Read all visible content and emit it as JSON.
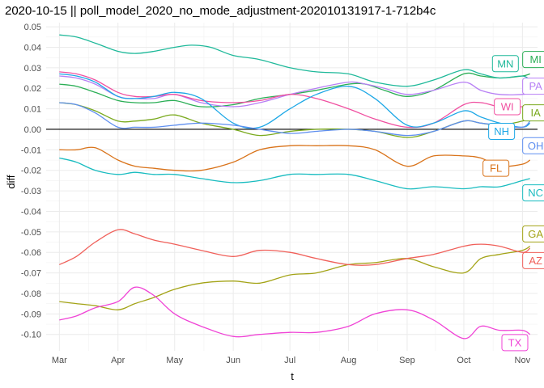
{
  "chart_data": {
    "type": "line",
    "title": "2020-10-15 || poll_model_2020_no_mode_adjustment-202010131917-1-712b4c",
    "xlabel": "t",
    "ylabel": "diff",
    "xlim": [
      "2020-02-23",
      "2020-11-09"
    ],
    "ylim": [
      -0.108,
      0.052
    ],
    "grid": true,
    "legend": "direct labels at line ends",
    "hline": 0.0,
    "x_ticks": [
      {
        "date": "2020-03-01",
        "label": "Mar"
      },
      {
        "date": "2020-04-01",
        "label": "Apr"
      },
      {
        "date": "2020-05-01",
        "label": "May"
      },
      {
        "date": "2020-06-01",
        "label": "Jun"
      },
      {
        "date": "2020-07-01",
        "label": "Jul"
      },
      {
        "date": "2020-08-01",
        "label": "Aug"
      },
      {
        "date": "2020-09-01",
        "label": "Sep"
      },
      {
        "date": "2020-10-01",
        "label": "Oct"
      },
      {
        "date": "2020-11-01",
        "label": "Nov"
      }
    ],
    "y_ticks": [
      {
        "value": 0.05,
        "label": "0.05"
      },
      {
        "value": 0.04,
        "label": "0.04"
      },
      {
        "value": 0.03,
        "label": "0.03"
      },
      {
        "value": 0.02,
        "label": "0.02"
      },
      {
        "value": 0.01,
        "label": "0.01"
      },
      {
        "value": 0.0,
        "label": "0.00"
      },
      {
        "value": -0.01,
        "label": "-0.01"
      },
      {
        "value": -0.02,
        "label": "-0.02"
      },
      {
        "value": -0.03,
        "label": "-0.03"
      },
      {
        "value": -0.04,
        "label": "-0.04"
      },
      {
        "value": -0.05,
        "label": "-0.05"
      },
      {
        "value": -0.06,
        "label": "-0.06"
      },
      {
        "value": -0.07,
        "label": "-0.07"
      },
      {
        "value": -0.08,
        "label": "-0.08"
      },
      {
        "value": -0.09,
        "label": "-0.09"
      },
      {
        "value": -0.1,
        "label": "-0.10"
      }
    ],
    "series": [
      {
        "name": "MI",
        "color": "#2aae55",
        "label": {
          "date": "2020-11-08",
          "value": 0.034
        },
        "x": [
          "2020-03-01",
          "2020-03-10",
          "2020-03-20",
          "2020-04-01",
          "2020-04-10",
          "2020-04-20",
          "2020-05-01",
          "2020-05-15",
          "2020-06-01",
          "2020-06-15",
          "2020-07-01",
          "2020-07-15",
          "2020-08-01",
          "2020-08-10",
          "2020-08-20",
          "2020-09-01",
          "2020-09-15",
          "2020-10-01",
          "2020-10-10",
          "2020-10-20",
          "2020-11-01",
          "2020-11-05"
        ],
        "y": [
          0.022,
          0.021,
          0.018,
          0.014,
          0.013,
          0.013,
          0.014,
          0.011,
          0.012,
          0.015,
          0.017,
          0.019,
          0.022,
          0.022,
          0.019,
          0.016,
          0.019,
          0.027,
          0.026,
          0.025,
          0.026,
          0.027
        ]
      },
      {
        "name": "MN",
        "color": "#1fb99a",
        "label": {
          "date": "2020-10-23",
          "value": 0.032
        },
        "x": [
          "2020-03-01",
          "2020-03-10",
          "2020-03-20",
          "2020-04-01",
          "2020-04-10",
          "2020-04-20",
          "2020-05-01",
          "2020-05-10",
          "2020-05-20",
          "2020-06-01",
          "2020-06-15",
          "2020-07-01",
          "2020-07-15",
          "2020-08-01",
          "2020-08-15",
          "2020-09-01",
          "2020-09-15",
          "2020-10-01",
          "2020-10-10",
          "2020-10-20",
          "2020-11-01",
          "2020-11-05"
        ],
        "y": [
          0.046,
          0.045,
          0.042,
          0.038,
          0.037,
          0.038,
          0.04,
          0.041,
          0.04,
          0.036,
          0.034,
          0.03,
          0.028,
          0.027,
          0.023,
          0.021,
          0.024,
          0.029,
          0.027,
          0.025,
          0.026,
          0.024
        ]
      },
      {
        "name": "PA",
        "color": "#b77ff5",
        "label": {
          "date": "2020-11-08",
          "value": 0.021
        },
        "x": [
          "2020-03-01",
          "2020-03-10",
          "2020-03-20",
          "2020-04-01",
          "2020-04-10",
          "2020-04-20",
          "2020-05-01",
          "2020-05-15",
          "2020-06-01",
          "2020-06-15",
          "2020-07-01",
          "2020-07-15",
          "2020-08-01",
          "2020-08-10",
          "2020-08-20",
          "2020-09-01",
          "2020-09-15",
          "2020-10-01",
          "2020-10-10",
          "2020-10-20",
          "2020-11-01",
          "2020-11-05"
        ],
        "y": [
          0.026,
          0.025,
          0.022,
          0.016,
          0.015,
          0.015,
          0.017,
          0.013,
          0.011,
          0.013,
          0.017,
          0.02,
          0.023,
          0.022,
          0.02,
          0.017,
          0.019,
          0.023,
          0.019,
          0.017,
          0.017,
          0.018
        ]
      },
      {
        "name": "WI",
        "color": "#f04fa0",
        "label": {
          "date": "2020-10-24",
          "value": 0.011
        },
        "x": [
          "2020-03-01",
          "2020-03-10",
          "2020-03-20",
          "2020-04-01",
          "2020-04-10",
          "2020-04-20",
          "2020-05-01",
          "2020-05-15",
          "2020-06-01",
          "2020-06-15",
          "2020-07-01",
          "2020-07-15",
          "2020-08-01",
          "2020-08-15",
          "2020-09-01",
          "2020-09-15",
          "2020-10-01",
          "2020-10-10",
          "2020-10-20",
          "2020-11-01",
          "2020-11-05"
        ],
        "y": [
          0.028,
          0.027,
          0.024,
          0.018,
          0.016,
          0.016,
          0.017,
          0.014,
          0.013,
          0.014,
          0.017,
          0.015,
          0.01,
          0.005,
          0.001,
          0.003,
          0.012,
          0.013,
          0.011,
          0.011,
          0.012
        ]
      },
      {
        "name": "IA",
        "color": "#7aaa1e",
        "label": {
          "date": "2020-11-08",
          "value": 0.008
        },
        "x": [
          "2020-03-01",
          "2020-03-10",
          "2020-03-20",
          "2020-04-01",
          "2020-04-10",
          "2020-04-20",
          "2020-05-01",
          "2020-05-15",
          "2020-06-01",
          "2020-06-15",
          "2020-07-01",
          "2020-07-15",
          "2020-08-01",
          "2020-08-15",
          "2020-09-01",
          "2020-09-15",
          "2020-10-01",
          "2020-10-10",
          "2020-10-20",
          "2020-11-01",
          "2020-11-05"
        ],
        "y": [
          0.013,
          0.012,
          0.009,
          0.004,
          0.004,
          0.005,
          0.007,
          0.003,
          0.0,
          -0.003,
          -0.001,
          0.0,
          0.0,
          -0.001,
          -0.004,
          -0.001,
          0.004,
          0.003,
          0.002,
          0.004,
          0.005
        ]
      },
      {
        "name": "NH",
        "color": "#1ca7e6",
        "label": {
          "date": "2020-10-21",
          "value": -0.001
        },
        "x": [
          "2020-03-01",
          "2020-03-10",
          "2020-03-20",
          "2020-04-01",
          "2020-04-10",
          "2020-04-20",
          "2020-05-01",
          "2020-05-15",
          "2020-06-01",
          "2020-06-15",
          "2020-07-01",
          "2020-07-15",
          "2020-08-01",
          "2020-08-15",
          "2020-09-01",
          "2020-09-15",
          "2020-10-01",
          "2020-10-10",
          "2020-10-20",
          "2020-11-01",
          "2020-11-05"
        ],
        "y": [
          0.027,
          0.026,
          0.023,
          0.016,
          0.015,
          0.016,
          0.018,
          0.015,
          0.003,
          0.001,
          0.01,
          0.017,
          0.021,
          0.015,
          0.002,
          0.003,
          0.009,
          0.006,
          0.003,
          0.001,
          0.003
        ]
      },
      {
        "name": "OH",
        "color": "#5f8ff0",
        "label": {
          "date": "2020-11-08",
          "value": -0.008
        },
        "x": [
          "2020-03-01",
          "2020-03-10",
          "2020-03-20",
          "2020-04-01",
          "2020-04-10",
          "2020-04-20",
          "2020-05-01",
          "2020-05-15",
          "2020-06-01",
          "2020-06-15",
          "2020-07-01",
          "2020-07-15",
          "2020-08-01",
          "2020-08-15",
          "2020-09-01",
          "2020-09-15",
          "2020-10-01",
          "2020-10-10",
          "2020-10-20",
          "2020-11-01",
          "2020-11-05"
        ],
        "y": [
          0.013,
          0.012,
          0.008,
          0.001,
          0.001,
          0.001,
          0.002,
          0.003,
          0.002,
          0.0,
          -0.002,
          -0.001,
          0.0,
          -0.001,
          -0.003,
          -0.001,
          0.004,
          0.003,
          0.002,
          0.001,
          0.004
        ]
      },
      {
        "name": "FL",
        "color": "#d9731a",
        "label": {
          "date": "2020-10-18",
          "value": -0.019
        },
        "x": [
          "2020-03-01",
          "2020-03-10",
          "2020-03-20",
          "2020-04-01",
          "2020-04-10",
          "2020-04-20",
          "2020-05-01",
          "2020-05-15",
          "2020-06-01",
          "2020-06-15",
          "2020-07-01",
          "2020-07-15",
          "2020-08-01",
          "2020-08-15",
          "2020-09-01",
          "2020-09-15",
          "2020-10-01",
          "2020-10-10",
          "2020-10-20",
          "2020-11-01",
          "2020-11-05"
        ],
        "y": [
          -0.01,
          -0.01,
          -0.009,
          -0.015,
          -0.018,
          -0.019,
          -0.02,
          -0.02,
          -0.016,
          -0.01,
          -0.008,
          -0.008,
          -0.008,
          -0.01,
          -0.018,
          -0.013,
          -0.013,
          -0.014,
          -0.018,
          -0.017,
          -0.015
        ]
      },
      {
        "name": "NC",
        "color": "#19bcc0",
        "label": {
          "date": "2020-11-08",
          "value": -0.031
        },
        "x": [
          "2020-03-01",
          "2020-03-10",
          "2020-03-20",
          "2020-04-01",
          "2020-04-10",
          "2020-04-20",
          "2020-05-01",
          "2020-05-15",
          "2020-06-01",
          "2020-06-15",
          "2020-07-01",
          "2020-07-15",
          "2020-08-01",
          "2020-08-15",
          "2020-09-01",
          "2020-09-15",
          "2020-10-01",
          "2020-10-10",
          "2020-10-20",
          "2020-11-01",
          "2020-11-05"
        ],
        "y": [
          -0.014,
          -0.016,
          -0.02,
          -0.022,
          -0.021,
          -0.022,
          -0.022,
          -0.024,
          -0.026,
          -0.025,
          -0.022,
          -0.022,
          -0.022,
          -0.025,
          -0.029,
          -0.028,
          -0.029,
          -0.028,
          -0.028,
          -0.025,
          -0.024
        ]
      },
      {
        "name": "GA",
        "color": "#a3a316",
        "label": {
          "date": "2020-11-08",
          "value": -0.051
        },
        "x": [
          "2020-03-01",
          "2020-03-10",
          "2020-03-20",
          "2020-04-01",
          "2020-04-10",
          "2020-04-20",
          "2020-05-01",
          "2020-05-15",
          "2020-06-01",
          "2020-06-15",
          "2020-07-01",
          "2020-07-15",
          "2020-08-01",
          "2020-08-15",
          "2020-09-01",
          "2020-09-15",
          "2020-10-01",
          "2020-10-10",
          "2020-10-20",
          "2020-11-01",
          "2020-11-05"
        ],
        "y": [
          -0.084,
          -0.085,
          -0.086,
          -0.088,
          -0.085,
          -0.082,
          -0.078,
          -0.075,
          -0.074,
          -0.075,
          -0.071,
          -0.07,
          -0.066,
          -0.065,
          -0.063,
          -0.067,
          -0.07,
          -0.063,
          -0.061,
          -0.059,
          -0.057
        ]
      },
      {
        "name": "AZ",
        "color": "#f0605a",
        "label": {
          "date": "2020-11-08",
          "value": -0.064
        },
        "x": [
          "2020-03-01",
          "2020-03-10",
          "2020-03-20",
          "2020-04-01",
          "2020-04-10",
          "2020-04-20",
          "2020-05-01",
          "2020-05-15",
          "2020-06-01",
          "2020-06-15",
          "2020-07-01",
          "2020-07-15",
          "2020-08-01",
          "2020-08-15",
          "2020-09-01",
          "2020-09-15",
          "2020-10-01",
          "2020-10-10",
          "2020-10-20",
          "2020-11-01",
          "2020-11-05"
        ],
        "y": [
          -0.066,
          -0.062,
          -0.055,
          -0.049,
          -0.051,
          -0.054,
          -0.056,
          -0.059,
          -0.062,
          -0.059,
          -0.06,
          -0.063,
          -0.066,
          -0.066,
          -0.063,
          -0.061,
          -0.057,
          -0.056,
          -0.057,
          -0.06,
          -0.058
        ]
      },
      {
        "name": "TX",
        "color": "#f043d6",
        "label": {
          "date": "2020-10-28",
          "value": -0.104
        },
        "x": [
          "2020-03-01",
          "2020-03-10",
          "2020-03-20",
          "2020-04-01",
          "2020-04-10",
          "2020-04-20",
          "2020-05-01",
          "2020-05-15",
          "2020-06-01",
          "2020-06-15",
          "2020-07-01",
          "2020-07-15",
          "2020-08-01",
          "2020-08-15",
          "2020-09-01",
          "2020-09-15",
          "2020-10-01",
          "2020-10-10",
          "2020-10-20",
          "2020-11-01",
          "2020-11-05"
        ],
        "y": [
          -0.093,
          -0.091,
          -0.087,
          -0.084,
          -0.077,
          -0.081,
          -0.09,
          -0.096,
          -0.101,
          -0.1,
          -0.099,
          -0.099,
          -0.096,
          -0.09,
          -0.088,
          -0.093,
          -0.102,
          -0.096,
          -0.098,
          -0.098,
          -0.1
        ]
      }
    ]
  }
}
